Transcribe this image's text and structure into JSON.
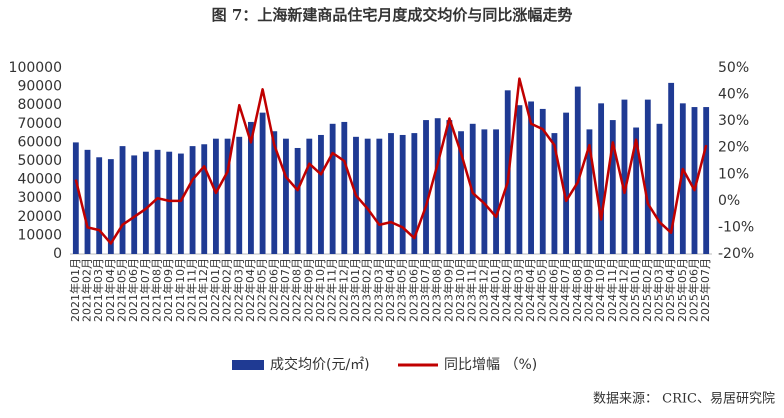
{
  "chart_data": {
    "type": "bar-line",
    "title": "图 7：上海新建商品住宅月度成交均价与同比涨幅走势",
    "source": "数据来源： CRIC、易居研究院",
    "categories": [
      "2021年01月",
      "2021年02月",
      "2021年03月",
      "2021年04月",
      "2021年05月",
      "2021年06月",
      "2021年07月",
      "2021年08月",
      "2021年09月",
      "2021年10月",
      "2021年11月",
      "2021年12月",
      "2022年01月",
      "2022年02月",
      "2022年03月",
      "2022年04月",
      "2022年05月",
      "2022年06月",
      "2022年07月",
      "2022年08月",
      "2022年09月",
      "2022年10月",
      "2022年11月",
      "2022年12月",
      "2023年01月",
      "2023年02月",
      "2023年03月",
      "2023年04月",
      "2023年05月",
      "2023年06月",
      "2023年07月",
      "2023年08月",
      "2023年09月",
      "2023年10月",
      "2023年11月",
      "2023年12月",
      "2024年01月",
      "2024年02月",
      "2024年03月",
      "2024年04月",
      "2024年05月",
      "2024年06月",
      "2024年07月",
      "2024年08月",
      "2024年09月",
      "2024年10月",
      "2024年11月",
      "2024年12月",
      "2025年01月",
      "2025年02月",
      "2025年03月",
      "2025年04月",
      "2025年05月",
      "2025年06月",
      "2025年07月"
    ],
    "series": [
      {
        "name": "成交均价(元/㎡)",
        "type": "bar",
        "color": "#1f3a93",
        "values": [
          60000,
          56000,
          52000,
          51000,
          58000,
          53000,
          55000,
          56000,
          55000,
          54000,
          58000,
          59000,
          62000,
          62000,
          63000,
          71000,
          76000,
          66000,
          62000,
          57000,
          62000,
          64000,
          70000,
          71000,
          63000,
          62000,
          62000,
          65000,
          64000,
          65000,
          72000,
          73000,
          72000,
          66000,
          70000,
          67000,
          67000,
          88000,
          80000,
          82000,
          78000,
          65000,
          76000,
          90000,
          67000,
          81000,
          72000,
          83000,
          68000,
          83000,
          70000,
          92000,
          81000,
          79000,
          79000
        ]
      },
      {
        "name": "同比增幅 （%)",
        "type": "line",
        "axis": "y2",
        "color": "#c00000",
        "values": [
          8,
          -10,
          -11,
          -16,
          -9,
          -6,
          -3,
          1,
          0,
          0,
          8,
          13,
          3,
          11,
          36,
          22,
          42,
          21,
          9,
          4,
          14,
          10,
          18,
          15,
          2,
          -3,
          -9,
          -8,
          -10,
          -14,
          -2,
          14,
          31,
          18,
          3,
          -1,
          -6,
          7,
          46,
          29,
          27,
          21,
          0,
          7,
          21,
          -7,
          22,
          3,
          23,
          -1,
          -8,
          -12,
          12,
          4,
          21
        ]
      }
    ],
    "ylim": [
      0,
      100000
    ],
    "yticks": [
      0,
      10000,
      20000,
      30000,
      40000,
      50000,
      60000,
      70000,
      80000,
      90000,
      100000
    ],
    "y2lim": [
      -20,
      50
    ],
    "y2ticks": [
      {
        "value": -20,
        "label": "-20%"
      },
      {
        "value": -10,
        "label": "-10%"
      },
      {
        "value": 0,
        "label": "0%"
      },
      {
        "value": 10,
        "label": "10%"
      },
      {
        "value": 20,
        "label": "20%"
      },
      {
        "value": 30,
        "label": "30%"
      },
      {
        "value": 40,
        "label": "40%"
      },
      {
        "value": 50,
        "label": "50%"
      }
    ],
    "legend": "bottom"
  }
}
